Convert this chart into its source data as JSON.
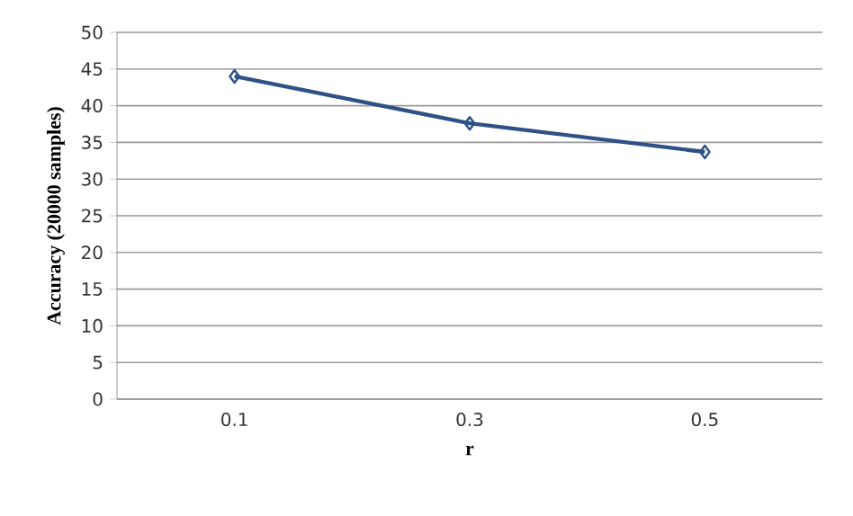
{
  "chart_data": {
    "type": "line",
    "xlabel": "r",
    "ylabel": "Accuracy (20000 samples)",
    "categories": [
      "0.1",
      "0.3",
      "0.5"
    ],
    "series": [
      {
        "color": "#2e5186",
        "values": [
          44.0,
          37.6,
          33.7
        ]
      }
    ],
    "ylim": [
      0,
      50
    ],
    "yticks": [
      0,
      5,
      10,
      15,
      20,
      25,
      30,
      35,
      40,
      45,
      50
    ],
    "grid": "y",
    "marker": "diamond",
    "line_style": "solid"
  }
}
